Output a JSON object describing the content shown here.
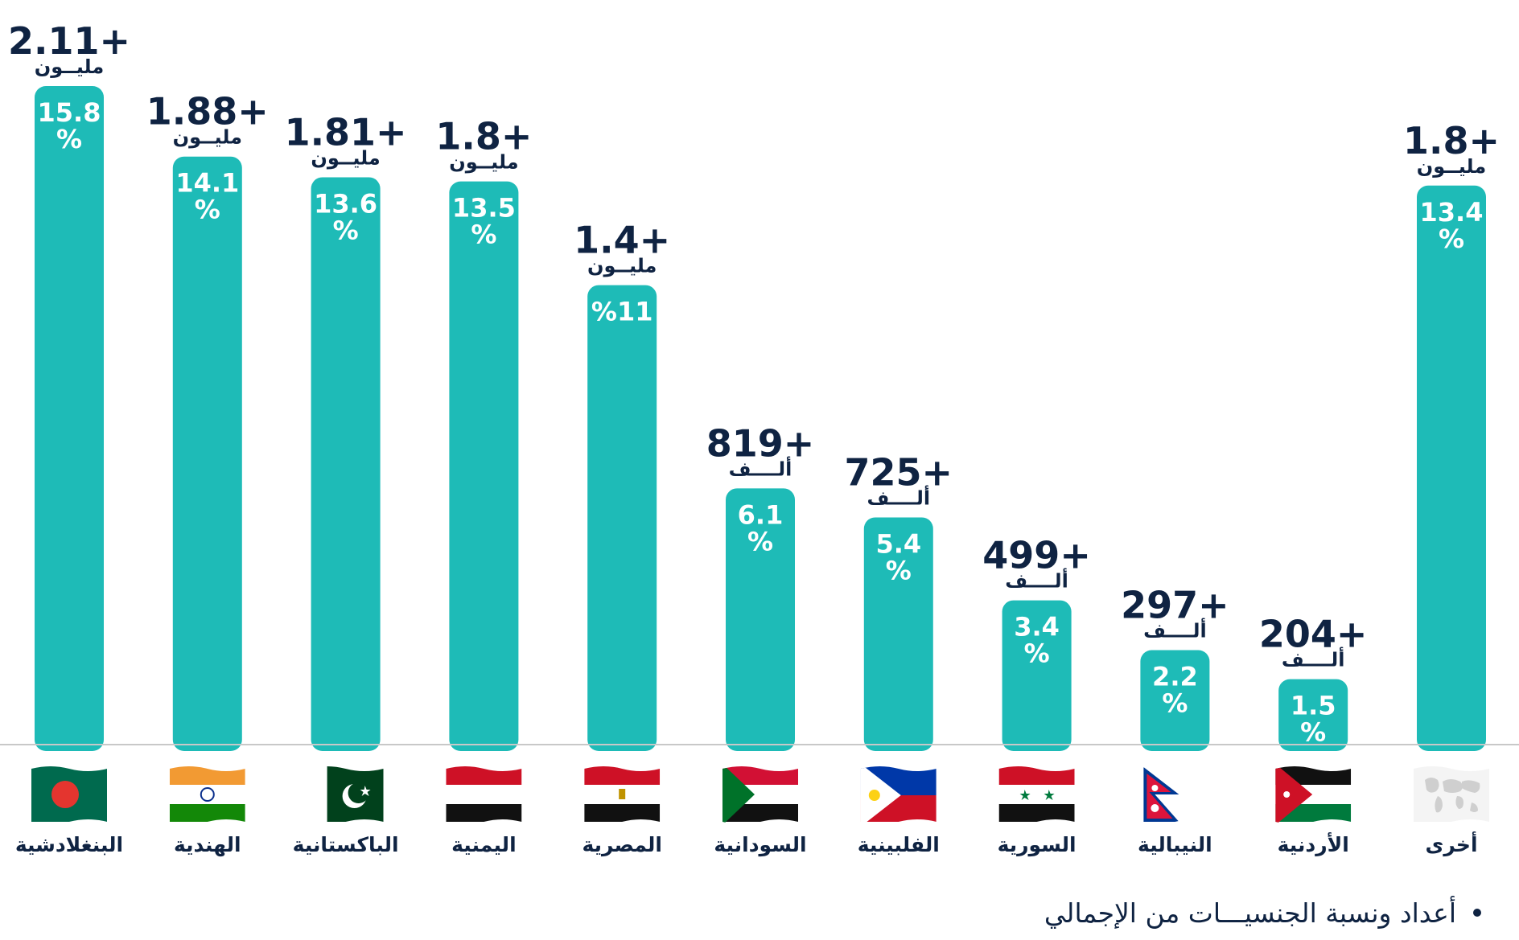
{
  "chart_data": {
    "type": "bar",
    "categories": [
      "البنغلادشية",
      "الهندية",
      "الباكستانية",
      "اليمنية",
      "المصرية",
      "السودانية",
      "الفلبينية",
      "السورية",
      "النيبالية",
      "الأردنية",
      "أخرى"
    ],
    "percent_labels": [
      "15.8\n%",
      "14.1\n%",
      "13.6\n%",
      "13.5\n%",
      "%11",
      "6.1\n%",
      "5.4\n%",
      "3.4\n%",
      "2.2\n%",
      "1.5\n%",
      "13.4\n%"
    ],
    "values_percent": [
      15.8,
      14.1,
      13.6,
      13.5,
      11,
      6.1,
      5.4,
      3.4,
      2.2,
      1.5,
      13.4
    ],
    "count_labels": [
      "2.11+",
      "1.88+",
      "1.81+",
      "1.8+",
      "1.4+",
      "819+",
      "725+",
      "499+",
      "297+",
      "204+",
      "1.8+"
    ],
    "count_units": [
      "مليــون",
      "مليــون",
      "مليــون",
      "مليــون",
      "مليــون",
      "ألــــف",
      "ألــــف",
      "ألــــف",
      "ألــــف",
      "ألــــف",
      "مليــون"
    ],
    "flags": [
      "flag-bangladesh",
      "flag-india",
      "flag-pakistan",
      "flag-yemen",
      "flag-egypt",
      "flag-sudan",
      "flag-philippines",
      "flag-syria",
      "flag-nepal",
      "flag-jordan",
      "world-map-icon"
    ],
    "ylim": [
      0,
      16.5
    ],
    "grid": false,
    "legend": "none"
  },
  "colors": {
    "bar": "#1ebbb7",
    "bar_text": "#ffffff",
    "label_text": "#0f2342",
    "baseline": "#c8c8c8"
  },
  "footnote": "أعداد ونسبة الجنسيـــات من الإجمالي"
}
